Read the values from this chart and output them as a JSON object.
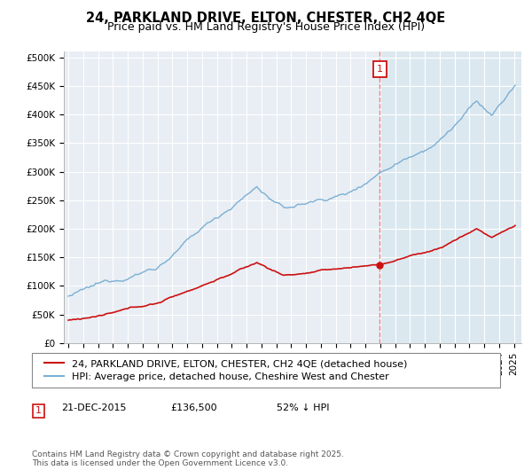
{
  "title": "24, PARKLAND DRIVE, ELTON, CHESTER, CH2 4QE",
  "subtitle": "Price paid vs. HM Land Registry's House Price Index (HPI)",
  "ylabel_ticks": [
    "£0",
    "£50K",
    "£100K",
    "£150K",
    "£200K",
    "£250K",
    "£300K",
    "£350K",
    "£400K",
    "£450K",
    "£500K"
  ],
  "ytick_values": [
    0,
    50000,
    100000,
    150000,
    200000,
    250000,
    300000,
    350000,
    400000,
    450000,
    500000
  ],
  "ylim": [
    0,
    510000
  ],
  "xlim_start": 1994.7,
  "xlim_end": 2025.5,
  "hpi_color": "#7bafd4",
  "price_color": "#cc1111",
  "sale_date_x": 2015.97,
  "sale_price": 136500,
  "sale_label": "1",
  "legend_entry1": "24, PARKLAND DRIVE, ELTON, CHESTER, CH2 4QE (detached house)",
  "legend_entry2": "HPI: Average price, detached house, Cheshire West and Chester",
  "sale_date_str": "21-DEC-2015",
  "sale_price_str": "£136,500",
  "sale_pct_str": "52% ↓ HPI",
  "footer": "Contains HM Land Registry data © Crown copyright and database right 2025.\nThis data is licensed under the Open Government Licence v3.0.",
  "bg_color": "#e8eef4",
  "bg_color_right": "#dce8f0",
  "grid_color": "#ffffff",
  "dashed_color": "#dd8888",
  "annot_color": "#cc1111",
  "title_fontsize": 10.5,
  "subtitle_fontsize": 9,
  "tick_fontsize": 7.5,
  "legend_fontsize": 8,
  "footer_fontsize": 6.5,
  "sale_info_fontsize": 8
}
